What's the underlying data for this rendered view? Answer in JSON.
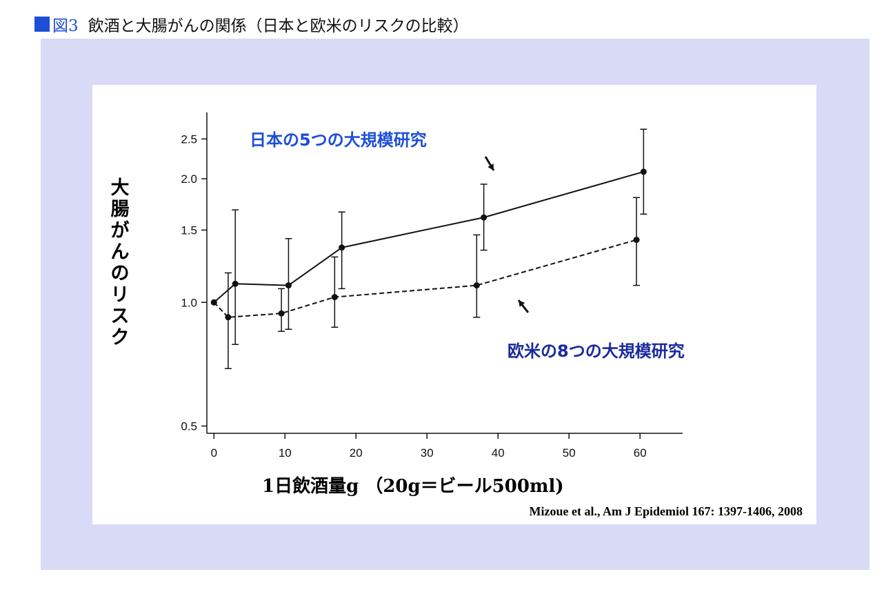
{
  "figure": {
    "number": "図3",
    "title": "飲酒と大腸がんの関係（日本と欧米のリスクの比較）"
  },
  "chart_data": {
    "type": "line",
    "ylabel": "大腸がんのリスク",
    "xlabel": "1日飲酒量g （20g＝ビール500ml)",
    "citation": "Mizoue et al., Am J Epidemiol 167: 1397-1406, 2008",
    "y_scale": "log",
    "xlim": [
      -1,
      66
    ],
    "ylim": [
      0.48,
      2.9
    ],
    "x_ticks": [
      0,
      10,
      20,
      30,
      40,
      50,
      60
    ],
    "y_ticks": [
      0.5,
      1.0,
      1.5,
      2.0,
      2.5
    ],
    "y_tick_labels": [
      "0.5",
      "1.0",
      "1.5",
      "2.0",
      "2.5"
    ],
    "series": [
      {
        "name": "日本の5つの大規模研究",
        "style": "solid",
        "label_color": "#1d4fd6",
        "points": [
          {
            "x": 0,
            "y": 1.0
          },
          {
            "x": 3,
            "y": 1.11,
            "lo": 0.79,
            "hi": 1.68
          },
          {
            "x": 10.5,
            "y": 1.1,
            "lo": 0.86,
            "hi": 1.43
          },
          {
            "x": 18,
            "y": 1.36,
            "lo": 1.08,
            "hi": 1.66
          },
          {
            "x": 38,
            "y": 1.61,
            "lo": 1.34,
            "hi": 1.94
          },
          {
            "x": 60.5,
            "y": 2.08,
            "lo": 1.64,
            "hi": 2.64
          }
        ]
      },
      {
        "name": "欧米の8つの大規模研究",
        "style": "dashed",
        "label_color": "#1a2a9c",
        "points": [
          {
            "x": 0,
            "y": 1.0
          },
          {
            "x": 2,
            "y": 0.92,
            "lo": 0.69,
            "hi": 1.18
          },
          {
            "x": 9.5,
            "y": 0.94,
            "lo": 0.85,
            "hi": 1.08
          },
          {
            "x": 17,
            "y": 1.03,
            "lo": 0.87,
            "hi": 1.29
          },
          {
            "x": 37,
            "y": 1.1,
            "lo": 0.92,
            "hi": 1.46
          },
          {
            "x": 59.5,
            "y": 1.42,
            "lo": 1.1,
            "hi": 1.8
          }
        ]
      }
    ]
  }
}
